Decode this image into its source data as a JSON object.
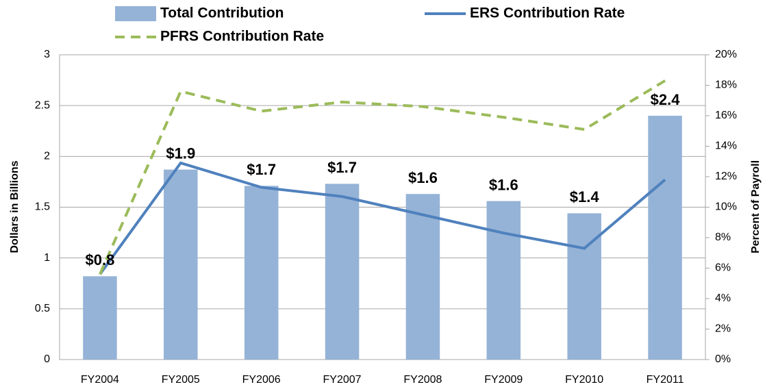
{
  "chart_data": {
    "type": "bar",
    "categories": [
      "FY2004",
      "FY2005",
      "FY2006",
      "FY2007",
      "FY2008",
      "FY2009",
      "FY2010",
      "FY2011"
    ],
    "series": [
      {
        "name": "Total Contribution",
        "type": "bar",
        "color": "#95b3d7",
        "values": [
          0.82,
          1.87,
          1.71,
          1.73,
          1.63,
          1.56,
          1.44,
          2.4
        ],
        "value_labels": [
          "$0.8",
          "$1.9",
          "$1.7",
          "$1.7",
          "$1.6",
          "$1.6",
          "$1.4",
          "$2.4"
        ]
      },
      {
        "name": "ERS Contribution Rate",
        "type": "line",
        "axis": "y2",
        "color": "#4f81bd",
        "dashed": false,
        "values": [
          5.6,
          12.9,
          11.3,
          10.7,
          9.5,
          8.3,
          7.3,
          11.8
        ]
      },
      {
        "name": "PFRS Contribution Rate",
        "type": "line",
        "axis": "y2",
        "color": "#9bbb59",
        "dashed": true,
        "values": [
          5.6,
          17.6,
          16.3,
          16.9,
          16.6,
          15.9,
          15.1,
          18.3
        ]
      }
    ],
    "y_label": "Dollars in Billions",
    "y2_label": "Percent of Payroll",
    "ylim": [
      0,
      3
    ],
    "yticks": [
      0,
      0.5,
      1,
      1.5,
      2,
      2.5,
      3
    ],
    "y2lim": [
      0,
      20
    ],
    "y2ticks": [
      {
        "value": 0,
        "label": "0%"
      },
      {
        "value": 2,
        "label": "2%"
      },
      {
        "value": 4,
        "label": "4%"
      },
      {
        "value": 6,
        "label": "6%"
      },
      {
        "value": 8,
        "label": "8%"
      },
      {
        "value": 10,
        "label": "10%"
      },
      {
        "value": 12,
        "label": "12%"
      },
      {
        "value": 14,
        "label": "14%"
      },
      {
        "value": 16,
        "label": "16%"
      },
      {
        "value": 18,
        "label": "18%"
      },
      {
        "value": 20,
        "label": "20%"
      }
    ],
    "grid": true
  }
}
